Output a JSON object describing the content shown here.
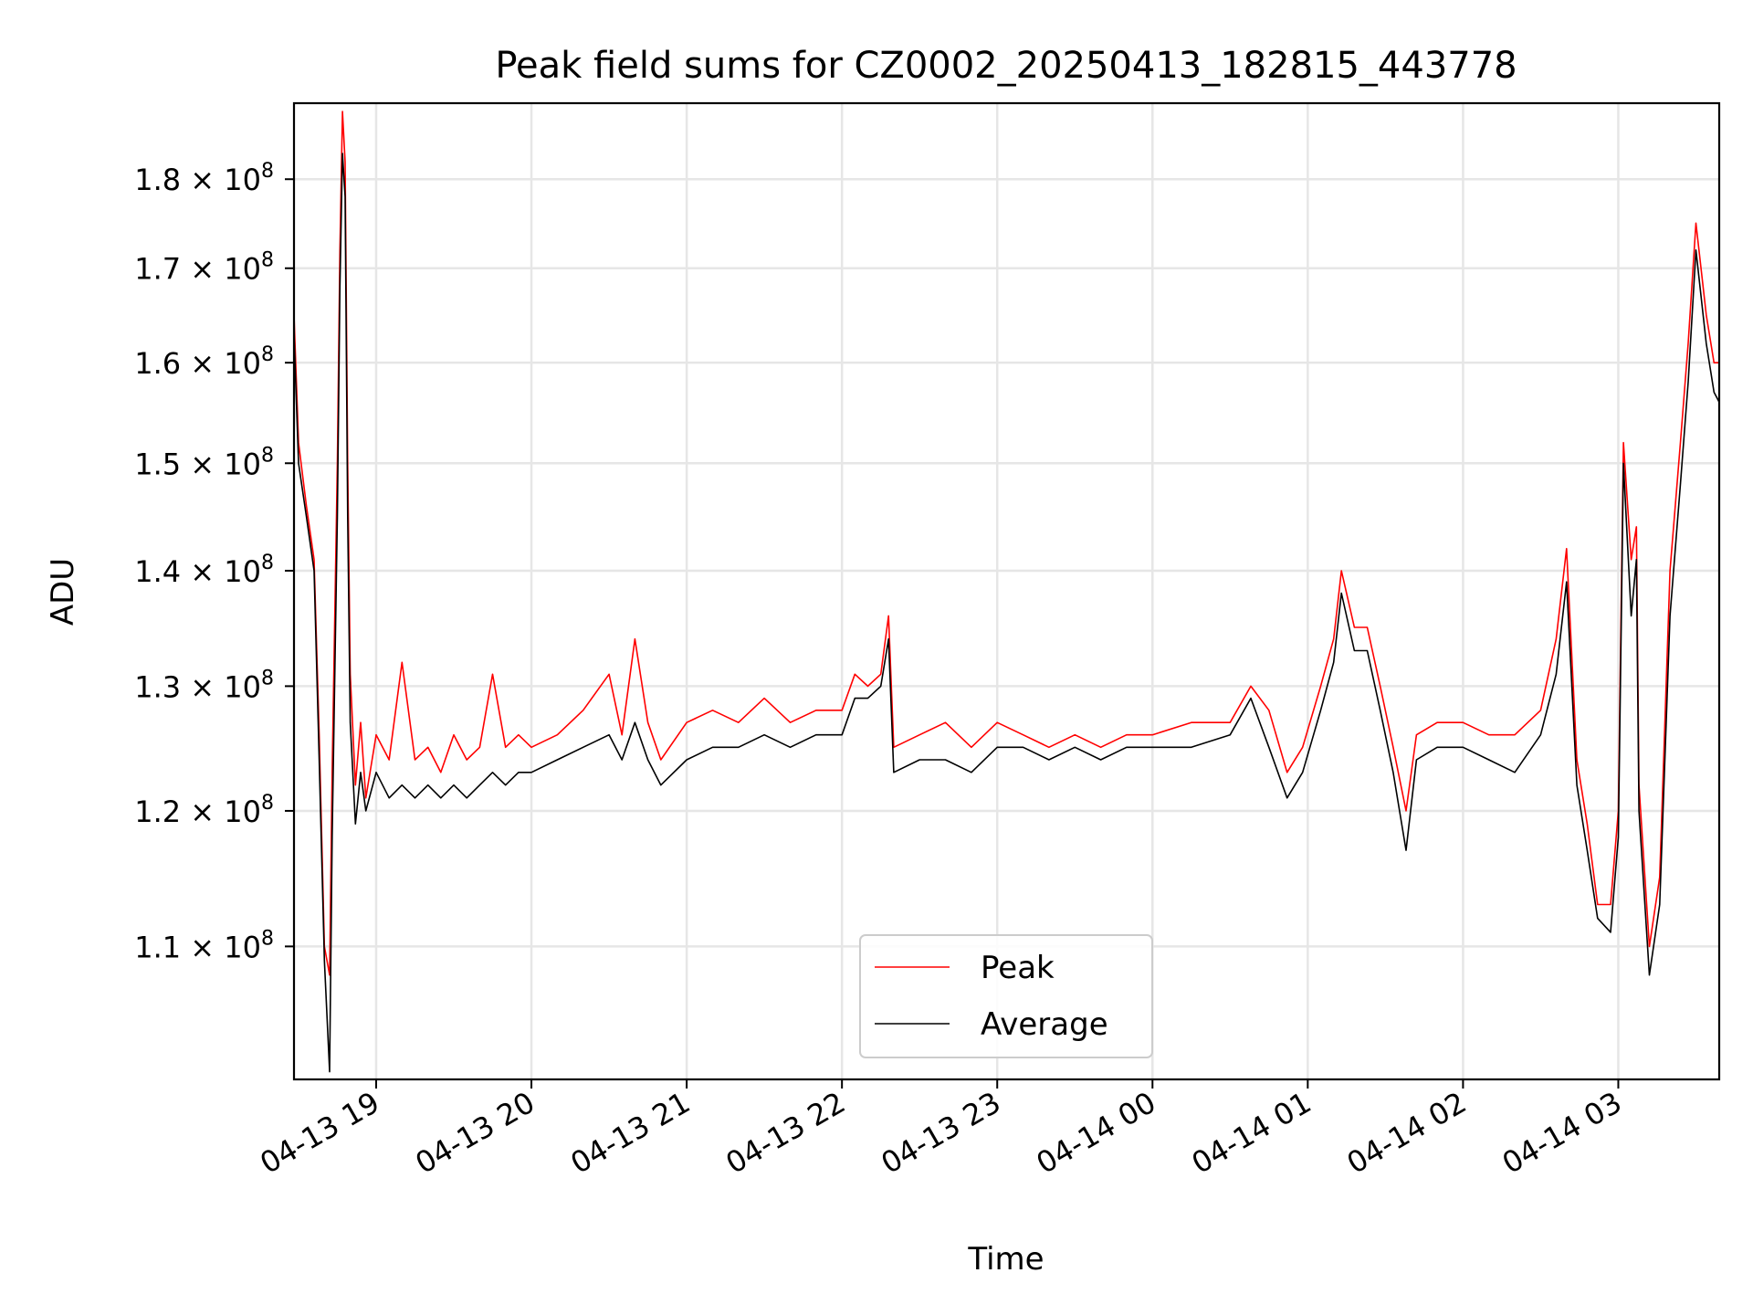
{
  "chart_data": {
    "type": "line",
    "title": "Peak field sums for CZ0002_20250413_182815_443778",
    "xlabel": "Time",
    "ylabel": "ADU",
    "x_range": [
      "2025-04-13 18:28:15",
      "2025-04-14 03:39:00"
    ],
    "xticks": [
      {
        "time": "2025-04-13 19:00",
        "label": "04-13 19"
      },
      {
        "time": "2025-04-13 20:00",
        "label": "04-13 20"
      },
      {
        "time": "2025-04-13 21:00",
        "label": "04-13 21"
      },
      {
        "time": "2025-04-13 22:00",
        "label": "04-13 22"
      },
      {
        "time": "2025-04-13 23:00",
        "label": "04-13 23"
      },
      {
        "time": "2025-04-14 00:00",
        "label": "04-14 00"
      },
      {
        "time": "2025-04-14 01:00",
        "label": "04-14 01"
      },
      {
        "time": "2025-04-14 02:00",
        "label": "04-14 02"
      },
      {
        "time": "2025-04-14 03:00",
        "label": "04-14 03"
      }
    ],
    "yscale": "log",
    "ylim": [
      101000000,
      189000000
    ],
    "yticks": [
      {
        "value": 110000000,
        "mantissa": "1.1",
        "base": "10",
        "exponent": "8"
      },
      {
        "value": 120000000,
        "mantissa": "1.2",
        "base": "10",
        "exponent": "8"
      },
      {
        "value": 130000000,
        "mantissa": "1.3",
        "base": "10",
        "exponent": "8"
      },
      {
        "value": 140000000,
        "mantissa": "1.4",
        "base": "10",
        "exponent": "8"
      },
      {
        "value": 150000000,
        "mantissa": "1.5",
        "base": "10",
        "exponent": "8"
      },
      {
        "value": 160000000,
        "mantissa": "1.6",
        "base": "10",
        "exponent": "8"
      },
      {
        "value": 170000000,
        "mantissa": "1.7",
        "base": "10",
        "exponent": "8"
      },
      {
        "value": 180000000,
        "mantissa": "1.8",
        "base": "10",
        "exponent": "8"
      }
    ],
    "grid": true,
    "legend_position": "bottom-center",
    "series": [
      {
        "name": "Peak",
        "color": "#ff0000",
        "points": [
          [
            "2025-04-13 18:28:15",
            165000000
          ],
          [
            "2025-04-13 18:30",
            152000000
          ],
          [
            "2025-04-13 18:33",
            146000000
          ],
          [
            "2025-04-13 18:36",
            141000000
          ],
          [
            "2025-04-13 18:38",
            126000000
          ],
          [
            "2025-04-13 18:40",
            110000000
          ],
          [
            "2025-04-13 18:42",
            108000000
          ],
          [
            "2025-04-13 18:43",
            123000000
          ],
          [
            "2025-04-13 18:45",
            150000000
          ],
          [
            "2025-04-13 18:46",
            172000000
          ],
          [
            "2025-04-13 18:47",
            188000000
          ],
          [
            "2025-04-13 18:48",
            182000000
          ],
          [
            "2025-04-13 18:49",
            150000000
          ],
          [
            "2025-04-13 18:50",
            131000000
          ],
          [
            "2025-04-13 18:52",
            122000000
          ],
          [
            "2025-04-13 18:54",
            127000000
          ],
          [
            "2025-04-13 18:56",
            121000000
          ],
          [
            "2025-04-13 19:00",
            126000000
          ],
          [
            "2025-04-13 19:05",
            124000000
          ],
          [
            "2025-04-13 19:10",
            132000000
          ],
          [
            "2025-04-13 19:15",
            124000000
          ],
          [
            "2025-04-13 19:20",
            125000000
          ],
          [
            "2025-04-13 19:25",
            123000000
          ],
          [
            "2025-04-13 19:30",
            126000000
          ],
          [
            "2025-04-13 19:35",
            124000000
          ],
          [
            "2025-04-13 19:40",
            125000000
          ],
          [
            "2025-04-13 19:45",
            131000000
          ],
          [
            "2025-04-13 19:50",
            125000000
          ],
          [
            "2025-04-13 19:55",
            126000000
          ],
          [
            "2025-04-13 20:00",
            125000000
          ],
          [
            "2025-04-13 20:10",
            126000000
          ],
          [
            "2025-04-13 20:20",
            128000000
          ],
          [
            "2025-04-13 20:30",
            131000000
          ],
          [
            "2025-04-13 20:35",
            126000000
          ],
          [
            "2025-04-13 20:40",
            134000000
          ],
          [
            "2025-04-13 20:45",
            127000000
          ],
          [
            "2025-04-13 20:50",
            124000000
          ],
          [
            "2025-04-13 21:00",
            127000000
          ],
          [
            "2025-04-13 21:10",
            128000000
          ],
          [
            "2025-04-13 21:20",
            127000000
          ],
          [
            "2025-04-13 21:30",
            129000000
          ],
          [
            "2025-04-13 21:40",
            127000000
          ],
          [
            "2025-04-13 21:50",
            128000000
          ],
          [
            "2025-04-13 22:00",
            128000000
          ],
          [
            "2025-04-13 22:05",
            131000000
          ],
          [
            "2025-04-13 22:10",
            130000000
          ],
          [
            "2025-04-13 22:15",
            131000000
          ],
          [
            "2025-04-13 22:18",
            136000000
          ],
          [
            "2025-04-13 22:20",
            125000000
          ],
          [
            "2025-04-13 22:30",
            126000000
          ],
          [
            "2025-04-13 22:40",
            127000000
          ],
          [
            "2025-04-13 22:50",
            125000000
          ],
          [
            "2025-04-13 23:00",
            127000000
          ],
          [
            "2025-04-13 23:10",
            126000000
          ],
          [
            "2025-04-13 23:20",
            125000000
          ],
          [
            "2025-04-13 23:30",
            126000000
          ],
          [
            "2025-04-13 23:40",
            125000000
          ],
          [
            "2025-04-13 23:50",
            126000000
          ],
          [
            "2025-04-14 00:00",
            126000000
          ],
          [
            "2025-04-14 00:15",
            127000000
          ],
          [
            "2025-04-14 00:30",
            127000000
          ],
          [
            "2025-04-14 00:38",
            130000000
          ],
          [
            "2025-04-14 00:45",
            128000000
          ],
          [
            "2025-04-14 00:52",
            123000000
          ],
          [
            "2025-04-14 00:58",
            125000000
          ],
          [
            "2025-04-14 01:05",
            130000000
          ],
          [
            "2025-04-14 01:10",
            134000000
          ],
          [
            "2025-04-14 01:13",
            140000000
          ],
          [
            "2025-04-14 01:18",
            135000000
          ],
          [
            "2025-04-14 01:23",
            135000000
          ],
          [
            "2025-04-14 01:28",
            130000000
          ],
          [
            "2025-04-14 01:33",
            125000000
          ],
          [
            "2025-04-14 01:38",
            120000000
          ],
          [
            "2025-04-14 01:42",
            126000000
          ],
          [
            "2025-04-14 01:50",
            127000000
          ],
          [
            "2025-04-14 02:00",
            127000000
          ],
          [
            "2025-04-14 02:10",
            126000000
          ],
          [
            "2025-04-14 02:20",
            126000000
          ],
          [
            "2025-04-14 02:30",
            128000000
          ],
          [
            "2025-04-14 02:36",
            134000000
          ],
          [
            "2025-04-14 02:40",
            142000000
          ],
          [
            "2025-04-14 02:44",
            124000000
          ],
          [
            "2025-04-14 02:48",
            119000000
          ],
          [
            "2025-04-14 02:52",
            113000000
          ],
          [
            "2025-04-14 02:57",
            113000000
          ],
          [
            "2025-04-14 03:00",
            120000000
          ],
          [
            "2025-04-14 03:02",
            152000000
          ],
          [
            "2025-04-14 03:05",
            141000000
          ],
          [
            "2025-04-14 03:07",
            144000000
          ],
          [
            "2025-04-14 03:08",
            122000000
          ],
          [
            "2025-04-14 03:12",
            110000000
          ],
          [
            "2025-04-14 03:16",
            115000000
          ],
          [
            "2025-04-14 03:20",
            140000000
          ],
          [
            "2025-04-14 03:24",
            152000000
          ],
          [
            "2025-04-14 03:27",
            162000000
          ],
          [
            "2025-04-14 03:30",
            175000000
          ],
          [
            "2025-04-14 03:34",
            165000000
          ],
          [
            "2025-04-14 03:37",
            160000000
          ],
          [
            "2025-04-14 03:39",
            160000000
          ]
        ]
      },
      {
        "name": "Average",
        "color": "#000000",
        "points": [
          [
            "2025-04-13 18:28:15",
            163000000
          ],
          [
            "2025-04-13 18:30",
            150000000
          ],
          [
            "2025-04-13 18:33",
            145000000
          ],
          [
            "2025-04-13 18:36",
            140000000
          ],
          [
            "2025-04-13 18:38",
            124000000
          ],
          [
            "2025-04-13 18:40",
            109000000
          ],
          [
            "2025-04-13 18:42",
            101500000
          ],
          [
            "2025-04-13 18:43",
            118000000
          ],
          [
            "2025-04-13 18:45",
            145000000
          ],
          [
            "2025-04-13 18:46",
            168000000
          ],
          [
            "2025-04-13 18:47",
            183000000
          ],
          [
            "2025-04-13 18:48",
            178000000
          ],
          [
            "2025-04-13 18:49",
            145000000
          ],
          [
            "2025-04-13 18:50",
            127000000
          ],
          [
            "2025-04-13 18:52",
            119000000
          ],
          [
            "2025-04-13 18:54",
            123000000
          ],
          [
            "2025-04-13 18:56",
            120000000
          ],
          [
            "2025-04-13 19:00",
            123000000
          ],
          [
            "2025-04-13 19:05",
            121000000
          ],
          [
            "2025-04-13 19:10",
            122000000
          ],
          [
            "2025-04-13 19:15",
            121000000
          ],
          [
            "2025-04-13 19:20",
            122000000
          ],
          [
            "2025-04-13 19:25",
            121000000
          ],
          [
            "2025-04-13 19:30",
            122000000
          ],
          [
            "2025-04-13 19:35",
            121000000
          ],
          [
            "2025-04-13 19:40",
            122000000
          ],
          [
            "2025-04-13 19:45",
            123000000
          ],
          [
            "2025-04-13 19:50",
            122000000
          ],
          [
            "2025-04-13 19:55",
            123000000
          ],
          [
            "2025-04-13 20:00",
            123000000
          ],
          [
            "2025-04-13 20:10",
            124000000
          ],
          [
            "2025-04-13 20:20",
            125000000
          ],
          [
            "2025-04-13 20:30",
            126000000
          ],
          [
            "2025-04-13 20:35",
            124000000
          ],
          [
            "2025-04-13 20:40",
            127000000
          ],
          [
            "2025-04-13 20:45",
            124000000
          ],
          [
            "2025-04-13 20:50",
            122000000
          ],
          [
            "2025-04-13 21:00",
            124000000
          ],
          [
            "2025-04-13 21:10",
            125000000
          ],
          [
            "2025-04-13 21:20",
            125000000
          ],
          [
            "2025-04-13 21:30",
            126000000
          ],
          [
            "2025-04-13 21:40",
            125000000
          ],
          [
            "2025-04-13 21:50",
            126000000
          ],
          [
            "2025-04-13 22:00",
            126000000
          ],
          [
            "2025-04-13 22:05",
            129000000
          ],
          [
            "2025-04-13 22:10",
            129000000
          ],
          [
            "2025-04-13 22:15",
            130000000
          ],
          [
            "2025-04-13 22:18",
            134000000
          ],
          [
            "2025-04-13 22:20",
            123000000
          ],
          [
            "2025-04-13 22:30",
            124000000
          ],
          [
            "2025-04-13 22:40",
            124000000
          ],
          [
            "2025-04-13 22:50",
            123000000
          ],
          [
            "2025-04-13 23:00",
            125000000
          ],
          [
            "2025-04-13 23:10",
            125000000
          ],
          [
            "2025-04-13 23:20",
            124000000
          ],
          [
            "2025-04-13 23:30",
            125000000
          ],
          [
            "2025-04-13 23:40",
            124000000
          ],
          [
            "2025-04-13 23:50",
            125000000
          ],
          [
            "2025-04-14 00:00",
            125000000
          ],
          [
            "2025-04-14 00:15",
            125000000
          ],
          [
            "2025-04-14 00:30",
            126000000
          ],
          [
            "2025-04-14 00:38",
            129000000
          ],
          [
            "2025-04-14 00:45",
            125000000
          ],
          [
            "2025-04-14 00:52",
            121000000
          ],
          [
            "2025-04-14 00:58",
            123000000
          ],
          [
            "2025-04-14 01:05",
            128000000
          ],
          [
            "2025-04-14 01:10",
            132000000
          ],
          [
            "2025-04-14 01:13",
            138000000
          ],
          [
            "2025-04-14 01:18",
            133000000
          ],
          [
            "2025-04-14 01:23",
            133000000
          ],
          [
            "2025-04-14 01:28",
            128000000
          ],
          [
            "2025-04-14 01:33",
            123000000
          ],
          [
            "2025-04-14 01:38",
            117000000
          ],
          [
            "2025-04-14 01:42",
            124000000
          ],
          [
            "2025-04-14 01:50",
            125000000
          ],
          [
            "2025-04-14 02:00",
            125000000
          ],
          [
            "2025-04-14 02:10",
            124000000
          ],
          [
            "2025-04-14 02:20",
            123000000
          ],
          [
            "2025-04-14 02:30",
            126000000
          ],
          [
            "2025-04-14 02:36",
            131000000
          ],
          [
            "2025-04-14 02:40",
            139000000
          ],
          [
            "2025-04-14 02:44",
            122000000
          ],
          [
            "2025-04-14 02:48",
            117000000
          ],
          [
            "2025-04-14 02:52",
            112000000
          ],
          [
            "2025-04-14 02:57",
            111000000
          ],
          [
            "2025-04-14 03:00",
            118000000
          ],
          [
            "2025-04-14 03:02",
            150000000
          ],
          [
            "2025-04-14 03:05",
            136000000
          ],
          [
            "2025-04-14 03:07",
            141000000
          ],
          [
            "2025-04-14 03:08",
            120000000
          ],
          [
            "2025-04-14 03:12",
            108000000
          ],
          [
            "2025-04-14 03:16",
            113000000
          ],
          [
            "2025-04-14 03:20",
            136000000
          ],
          [
            "2025-04-14 03:24",
            148000000
          ],
          [
            "2025-04-14 03:27",
            158000000
          ],
          [
            "2025-04-14 03:30",
            172000000
          ],
          [
            "2025-04-14 03:34",
            162000000
          ],
          [
            "2025-04-14 03:37",
            157000000
          ],
          [
            "2025-04-14 03:39",
            156000000
          ]
        ]
      }
    ]
  }
}
